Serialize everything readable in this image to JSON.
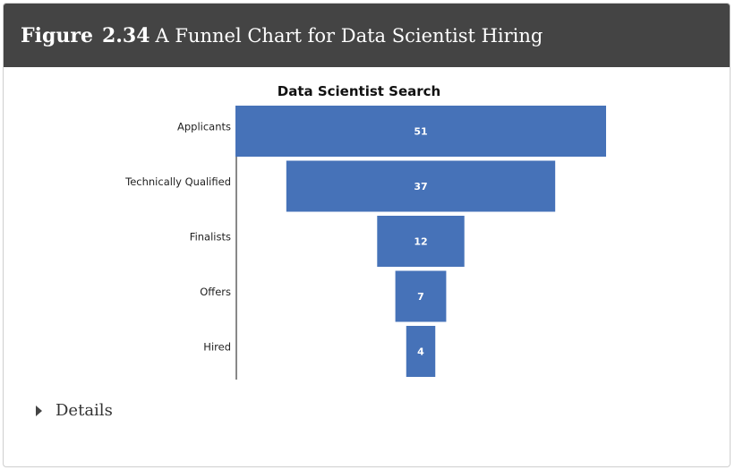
{
  "figure": {
    "label": "Figure",
    "number": "2.34",
    "caption": "A Funnel Chart for Data Scientist Hiring"
  },
  "details": {
    "label": "Details",
    "expanded": false,
    "icon": "triangle-right-icon"
  },
  "chart_data": {
    "type": "funnel",
    "title": "Data Scientist Search",
    "categories": [
      "Applicants",
      "Technically Qualified",
      "Finalists",
      "Offers",
      "Hired"
    ],
    "values": [
      51,
      37,
      12,
      7,
      4
    ],
    "bar_color": "#4672b8",
    "label_color": "#ffffff"
  }
}
